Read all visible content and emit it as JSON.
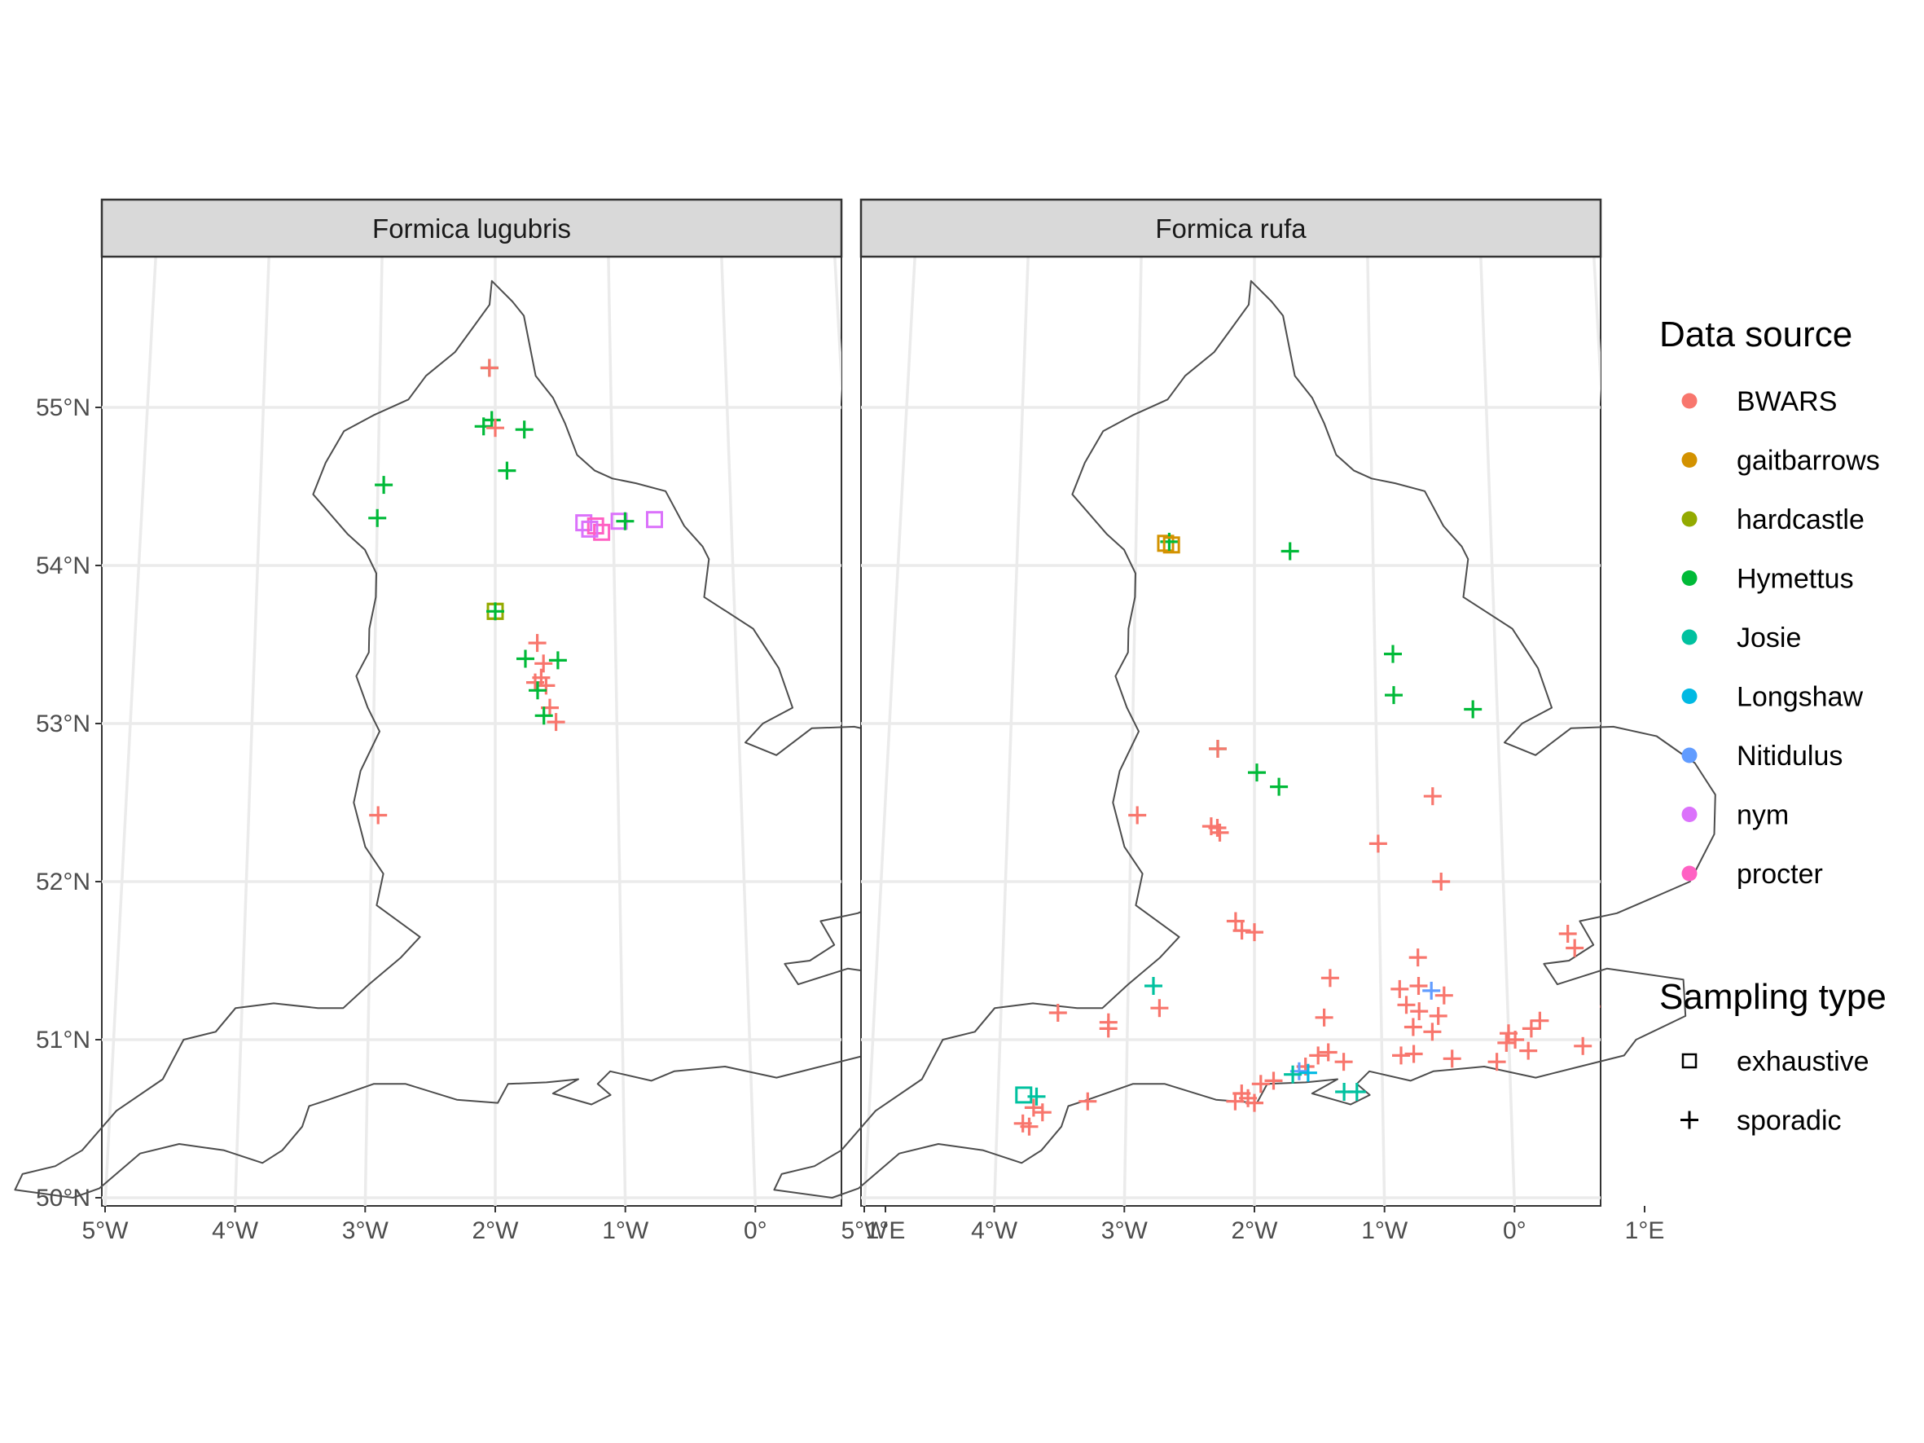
{
  "panels": [
    {
      "title": "Formica lugubris"
    },
    {
      "title": "Formica rufa"
    }
  ],
  "x_ticks": [
    "5°W",
    "4°W",
    "3°W",
    "2°W",
    "1°W",
    "0°",
    "1°E"
  ],
  "y_ticks": [
    "50°N",
    "51°N",
    "52°N",
    "53°N",
    "54°N",
    "55°N"
  ],
  "legend": {
    "color_title": "Data source",
    "shape_title": "Sampling type",
    "sources": [
      {
        "name": "BWARS",
        "color": "#F8766D"
      },
      {
        "name": "gaitbarrows",
        "color": "#D39200"
      },
      {
        "name": "hardcastle",
        "color": "#93AA00"
      },
      {
        "name": "Hymettus",
        "color": "#00BA38"
      },
      {
        "name": "Josie",
        "color": "#00C19F"
      },
      {
        "name": "Longshaw",
        "color": "#00B9E3"
      },
      {
        "name": "Nitidulus",
        "color": "#619CFF"
      },
      {
        "name": "nym",
        "color": "#DB72FB"
      },
      {
        "name": "procter",
        "color": "#FF61C3"
      }
    ],
    "sampling": [
      {
        "name": "exhaustive",
        "shape": "square"
      },
      {
        "name": "sporadic",
        "shape": "plus"
      }
    ]
  },
  "chart_data": {
    "type": "scatter",
    "x_axis": "longitude",
    "y_axis": "latitude",
    "xlim": [
      -5.4,
      1.8
    ],
    "ylim": [
      49.95,
      55.95
    ],
    "grid": true,
    "legend_position": "right",
    "panels": [
      {
        "title": "Formica lugubris",
        "points": [
          {
            "lon": -2.05,
            "lat": 55.25,
            "source": "Hymettus",
            "type": "sporadic"
          },
          {
            "lon": -2.05,
            "lat": 55.25,
            "source": "BWARS",
            "type": "sporadic"
          },
          {
            "lon": -2.1,
            "lat": 54.88,
            "source": "Hymettus",
            "type": "sporadic"
          },
          {
            "lon": -2.03,
            "lat": 54.92,
            "source": "Hymettus",
            "type": "sporadic"
          },
          {
            "lon": -2.0,
            "lat": 54.87,
            "source": "BWARS",
            "type": "sporadic"
          },
          {
            "lon": -1.75,
            "lat": 54.86,
            "source": "Hymettus",
            "type": "sporadic"
          },
          {
            "lon": -1.9,
            "lat": 54.6,
            "source": "Hymettus",
            "type": "sporadic"
          },
          {
            "lon": -2.95,
            "lat": 54.51,
            "source": "Hymettus",
            "type": "sporadic"
          },
          {
            "lon": -3.0,
            "lat": 54.3,
            "source": "Hymettus",
            "type": "sporadic"
          },
          {
            "lon": -1.25,
            "lat": 54.27,
            "source": "nym",
            "type": "exhaustive"
          },
          {
            "lon": -1.15,
            "lat": 54.25,
            "source": "procter",
            "type": "exhaustive"
          },
          {
            "lon": -1.1,
            "lat": 54.21,
            "source": "procter",
            "type": "exhaustive"
          },
          {
            "lon": -1.2,
            "lat": 54.23,
            "source": "nym",
            "type": "exhaustive"
          },
          {
            "lon": -0.95,
            "lat": 54.28,
            "source": "nym",
            "type": "exhaustive"
          },
          {
            "lon": -0.9,
            "lat": 54.28,
            "source": "Hymettus",
            "type": "sporadic"
          },
          {
            "lon": -0.65,
            "lat": 54.29,
            "source": "nym",
            "type": "exhaustive"
          },
          {
            "lon": -2.0,
            "lat": 53.71,
            "source": "gaitbarrows",
            "type": "exhaustive"
          },
          {
            "lon": -2.0,
            "lat": 53.71,
            "source": "hardcastle",
            "type": "exhaustive"
          },
          {
            "lon": -2.0,
            "lat": 53.71,
            "source": "Hymettus",
            "type": "sporadic"
          },
          {
            "lon": -1.65,
            "lat": 53.51,
            "source": "BWARS",
            "type": "sporadic"
          },
          {
            "lon": -1.75,
            "lat": 53.41,
            "source": "Hymettus",
            "type": "sporadic"
          },
          {
            "lon": -1.6,
            "lat": 53.38,
            "source": "BWARS",
            "type": "sporadic"
          },
          {
            "lon": -1.48,
            "lat": 53.4,
            "source": "Hymettus",
            "type": "sporadic"
          },
          {
            "lon": -1.62,
            "lat": 53.29,
            "source": "BWARS",
            "type": "sporadic"
          },
          {
            "lon": -1.67,
            "lat": 53.26,
            "source": "BWARS",
            "type": "sporadic"
          },
          {
            "lon": -1.58,
            "lat": 53.24,
            "source": "BWARS",
            "type": "sporadic"
          },
          {
            "lon": -1.65,
            "lat": 53.21,
            "source": "Hymettus",
            "type": "sporadic"
          },
          {
            "lon": -1.55,
            "lat": 53.1,
            "source": "BWARS",
            "type": "sporadic"
          },
          {
            "lon": -1.6,
            "lat": 53.05,
            "source": "Hymettus",
            "type": "sporadic"
          },
          {
            "lon": -1.5,
            "lat": 53.01,
            "source": "BWARS",
            "type": "sporadic"
          },
          {
            "lon": -2.95,
            "lat": 52.42,
            "source": "BWARS",
            "type": "sporadic"
          }
        ]
      },
      {
        "title": "Formica rufa",
        "points": [
          {
            "lon": -2.75,
            "lat": 54.14,
            "source": "gaitbarrows",
            "type": "exhaustive"
          },
          {
            "lon": -2.72,
            "lat": 54.15,
            "source": "Hymettus",
            "type": "sporadic"
          },
          {
            "lon": -2.7,
            "lat": 54.13,
            "source": "gaitbarrows",
            "type": "exhaustive"
          },
          {
            "lon": -1.7,
            "lat": 54.09,
            "source": "Hymettus",
            "type": "sporadic"
          },
          {
            "lon": -0.85,
            "lat": 53.44,
            "source": "Hymettus",
            "type": "sporadic"
          },
          {
            "lon": -0.85,
            "lat": 53.18,
            "source": "Hymettus",
            "type": "sporadic"
          },
          {
            "lon": -0.2,
            "lat": 53.09,
            "source": "Hymettus",
            "type": "sporadic"
          },
          {
            "lon": -2.3,
            "lat": 52.84,
            "source": "Hymettus",
            "type": "sporadic"
          },
          {
            "lon": -2.3,
            "lat": 52.84,
            "source": "BWARS",
            "type": "sporadic"
          },
          {
            "lon": -1.98,
            "lat": 52.69,
            "source": "Hymettus",
            "type": "sporadic"
          },
          {
            "lon": -1.8,
            "lat": 52.6,
            "source": "Hymettus",
            "type": "sporadic"
          },
          {
            "lon": -0.55,
            "lat": 52.54,
            "source": "BWARS",
            "type": "sporadic"
          },
          {
            "lon": -2.95,
            "lat": 52.42,
            "source": "BWARS",
            "type": "sporadic"
          },
          {
            "lon": -2.35,
            "lat": 52.35,
            "source": "BWARS",
            "type": "sporadic"
          },
          {
            "lon": -2.3,
            "lat": 52.34,
            "source": "BWARS",
            "type": "sporadic"
          },
          {
            "lon": -2.28,
            "lat": 52.31,
            "source": "BWARS",
            "type": "sporadic"
          },
          {
            "lon": -1.0,
            "lat": 52.24,
            "source": "BWARS",
            "type": "sporadic"
          },
          {
            "lon": -0.5,
            "lat": 52.0,
            "source": "BWARS",
            "type": "sporadic"
          },
          {
            "lon": -2.15,
            "lat": 51.75,
            "source": "BWARS",
            "type": "sporadic"
          },
          {
            "lon": -2.1,
            "lat": 51.69,
            "source": "BWARS",
            "type": "sporadic"
          },
          {
            "lon": -2.0,
            "lat": 51.68,
            "source": "BWARS",
            "type": "sporadic"
          },
          {
            "lon": 0.5,
            "lat": 51.67,
            "source": "BWARS",
            "type": "sporadic"
          },
          {
            "lon": 0.55,
            "lat": 51.58,
            "source": "BWARS",
            "type": "sporadic"
          },
          {
            "lon": -0.7,
            "lat": 51.52,
            "source": "BWARS",
            "type": "sporadic"
          },
          {
            "lon": -1.4,
            "lat": 51.39,
            "source": "BWARS",
            "type": "sporadic"
          },
          {
            "lon": -2.8,
            "lat": 51.34,
            "source": "Josie",
            "type": "sporadic"
          },
          {
            "lon": -0.85,
            "lat": 51.32,
            "source": "BWARS",
            "type": "sporadic"
          },
          {
            "lon": -0.7,
            "lat": 51.34,
            "source": "BWARS",
            "type": "sporadic"
          },
          {
            "lon": -0.6,
            "lat": 51.31,
            "source": "Nitidulus",
            "type": "sporadic"
          },
          {
            "lon": -0.5,
            "lat": 51.28,
            "source": "BWARS",
            "type": "sporadic"
          },
          {
            "lon": 0.95,
            "lat": 51.33,
            "source": "BWARS",
            "type": "sporadic"
          },
          {
            "lon": 1.02,
            "lat": 51.32,
            "source": "BWARS",
            "type": "sporadic"
          },
          {
            "lon": 0.98,
            "lat": 51.25,
            "source": "BWARS",
            "type": "sporadic"
          },
          {
            "lon": 0.8,
            "lat": 51.21,
            "source": "BWARS",
            "type": "sporadic"
          },
          {
            "lon": 1.05,
            "lat": 51.19,
            "source": "BWARS",
            "type": "sporadic"
          },
          {
            "lon": -0.8,
            "lat": 51.22,
            "source": "BWARS",
            "type": "sporadic"
          },
          {
            "lon": -0.7,
            "lat": 51.18,
            "source": "BWARS",
            "type": "sporadic"
          },
          {
            "lon": -0.55,
            "lat": 51.15,
            "source": "BWARS",
            "type": "sporadic"
          },
          {
            "lon": -3.55,
            "lat": 51.17,
            "source": "BWARS",
            "type": "sporadic"
          },
          {
            "lon": -2.75,
            "lat": 51.2,
            "source": "BWARS",
            "type": "sporadic"
          },
          {
            "lon": -3.15,
            "lat": 51.11,
            "source": "BWARS",
            "type": "sporadic"
          },
          {
            "lon": -3.15,
            "lat": 51.07,
            "source": "BWARS",
            "type": "sporadic"
          },
          {
            "lon": -1.45,
            "lat": 51.14,
            "source": "BWARS",
            "type": "sporadic"
          },
          {
            "lon": -0.75,
            "lat": 51.08,
            "source": "BWARS",
            "type": "sporadic"
          },
          {
            "lon": -0.6,
            "lat": 51.05,
            "source": "BWARS",
            "type": "sporadic"
          },
          {
            "lon": 0.0,
            "lat": 51.04,
            "source": "BWARS",
            "type": "sporadic"
          },
          {
            "lon": 0.05,
            "lat": 51.0,
            "source": "BWARS",
            "type": "sporadic"
          },
          {
            "lon": -0.02,
            "lat": 50.98,
            "source": "BWARS",
            "type": "sporadic"
          },
          {
            "lon": 0.18,
            "lat": 51.07,
            "source": "BWARS",
            "type": "sporadic"
          },
          {
            "lon": 0.25,
            "lat": 51.12,
            "source": "BWARS",
            "type": "sporadic"
          },
          {
            "lon": 0.15,
            "lat": 50.93,
            "source": "BWARS",
            "type": "sporadic"
          },
          {
            "lon": 0.58,
            "lat": 50.96,
            "source": "BWARS",
            "type": "sporadic"
          },
          {
            "lon": -0.85,
            "lat": 50.9,
            "source": "BWARS",
            "type": "sporadic"
          },
          {
            "lon": -0.75,
            "lat": 50.91,
            "source": "BWARS",
            "type": "sporadic"
          },
          {
            "lon": -0.45,
            "lat": 50.88,
            "source": "BWARS",
            "type": "sporadic"
          },
          {
            "lon": -0.1,
            "lat": 50.86,
            "source": "BWARS",
            "type": "sporadic"
          },
          {
            "lon": -1.5,
            "lat": 50.9,
            "source": "BWARS",
            "type": "sporadic"
          },
          {
            "lon": -1.42,
            "lat": 50.92,
            "source": "BWARS",
            "type": "sporadic"
          },
          {
            "lon": -1.3,
            "lat": 50.86,
            "source": "BWARS",
            "type": "sporadic"
          },
          {
            "lon": -1.6,
            "lat": 50.83,
            "source": "BWARS",
            "type": "sporadic"
          },
          {
            "lon": -1.65,
            "lat": 50.8,
            "source": "Nitidulus",
            "type": "sporadic"
          },
          {
            "lon": -1.58,
            "lat": 50.79,
            "source": "Longshaw",
            "type": "sporadic"
          },
          {
            "lon": -1.7,
            "lat": 50.78,
            "source": "Josie",
            "type": "sporadic"
          },
          {
            "lon": -1.85,
            "lat": 50.74,
            "source": "BWARS",
            "type": "sporadic"
          },
          {
            "lon": -1.95,
            "lat": 50.72,
            "source": "BWARS",
            "type": "sporadic"
          },
          {
            "lon": -2.1,
            "lat": 50.66,
            "source": "BWARS",
            "type": "sporadic"
          },
          {
            "lon": -2.05,
            "lat": 50.63,
            "source": "BWARS",
            "type": "sporadic"
          },
          {
            "lon": -2.15,
            "lat": 50.61,
            "source": "BWARS",
            "type": "sporadic"
          },
          {
            "lon": -2.0,
            "lat": 50.6,
            "source": "BWARS",
            "type": "sporadic"
          },
          {
            "lon": -1.3,
            "lat": 50.67,
            "source": "Josie",
            "type": "sporadic"
          },
          {
            "lon": -1.2,
            "lat": 50.67,
            "source": "Josie",
            "type": "sporadic"
          },
          {
            "lon": -3.8,
            "lat": 50.65,
            "source": "Josie",
            "type": "exhaustive"
          },
          {
            "lon": -3.7,
            "lat": 50.64,
            "source": "Josie",
            "type": "sporadic"
          },
          {
            "lon": -3.72,
            "lat": 50.57,
            "source": "BWARS",
            "type": "sporadic"
          },
          {
            "lon": -3.65,
            "lat": 50.54,
            "source": "BWARS",
            "type": "sporadic"
          },
          {
            "lon": -3.8,
            "lat": 50.47,
            "source": "BWARS",
            "type": "sporadic"
          },
          {
            "lon": -3.75,
            "lat": 50.45,
            "source": "BWARS",
            "type": "sporadic"
          },
          {
            "lon": -3.3,
            "lat": 50.61,
            "source": "BWARS",
            "type": "sporadic"
          }
        ]
      }
    ]
  }
}
